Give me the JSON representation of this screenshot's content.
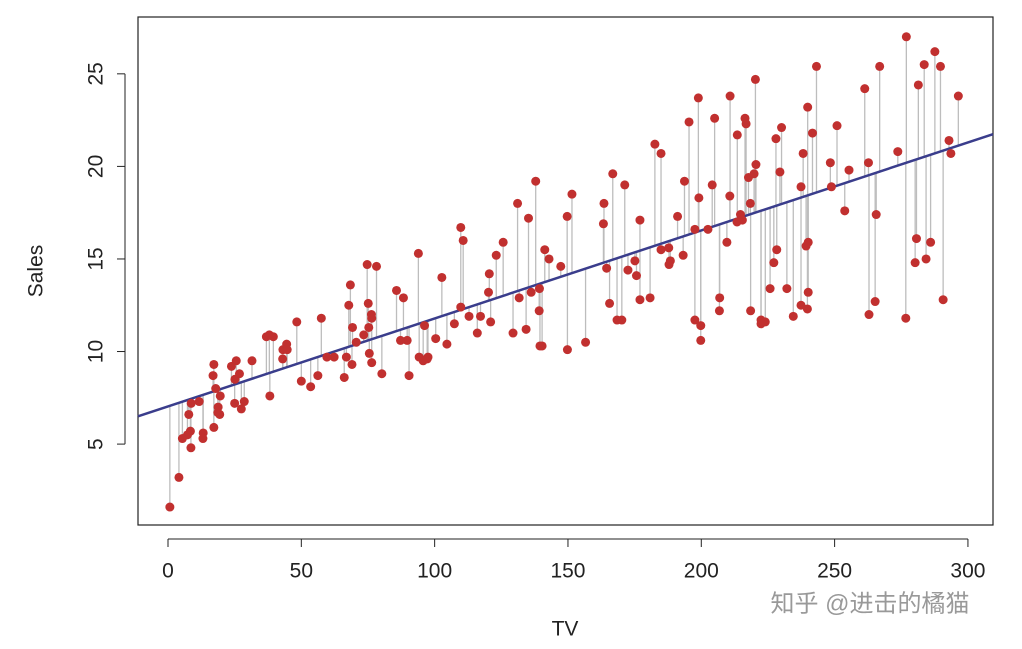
{
  "chart_data": {
    "type": "scatter",
    "x_label": "TV",
    "y_label": "Sales",
    "watermark": "知乎 @进击的橘猫",
    "x": [
      230.1,
      44.5,
      17.2,
      151.5,
      180.8,
      8.7,
      57.5,
      120.2,
      8.6,
      199.8,
      66.1,
      214.7,
      23.8,
      97.5,
      204.1,
      195.4,
      67.8,
      281.4,
      69.2,
      147.3,
      218.4,
      237.4,
      13.2,
      228.3,
      62.3,
      262.9,
      142.9,
      240.1,
      248.8,
      70.6,
      292.9,
      112.9,
      97.2,
      265.6,
      95.7,
      290.7,
      266.9,
      74.7,
      43.1,
      228,
      202.5,
      177,
      293.6,
      206.9,
      25.1,
      175.1,
      89.7,
      239.9,
      227.2,
      66.9,
      199.8,
      100.4,
      216.4,
      182.6,
      262.7,
      198.9,
      7.3,
      136.2,
      210.8,
      210.7,
      53.5,
      261.3,
      239.3,
      102.7,
      131.1,
      69,
      31.5,
      139.3,
      237.4,
      216.8,
      199.1,
      109.8,
      26.8,
      129.4,
      213.4,
      16.9,
      27.5,
      120.5,
      5.4,
      116,
      76.4,
      239.8,
      75.3,
      68.4,
      213.5,
      193.2,
      76.3,
      110.7,
      88.3,
      109.8,
      134.3,
      28.6,
      217.7,
      250.9,
      107.4,
      163.3,
      197.6,
      184.9,
      289.7,
      135.2,
      222.4,
      296.4,
      280.2,
      187.9,
      238.2,
      137.9,
      25,
      90.4,
      13.1,
      255.4,
      225.8,
      241.7,
      175.7,
      209.6,
      78.2,
      75.1,
      139.2,
      76.4,
      125.7,
      19.4,
      141.3,
      18.8,
      224,
      123.1,
      229.5,
      87.2,
      7.8,
      80.2,
      220.3,
      59.6,
      0.7,
      265.2,
      8.4,
      219.8,
      36.9,
      48.3,
      25.6,
      273.7,
      43,
      184.9,
      73.4,
      193.7,
      220.5,
      104.6,
      96.2,
      140.3,
      240.1,
      243.2,
      38,
      44.7,
      280.7,
      121,
      197.6,
      171.3,
      187.8,
      4.1,
      93.9,
      149.8,
      11.7,
      131.7,
      172.5,
      85.7,
      188.4,
      163.5,
      117.2,
      234.5,
      17.9,
      206.8,
      215.4,
      284.3,
      50,
      164.5,
      19.6,
      168.4,
      222.4,
      276.9,
      248.4,
      170.2,
      276.7,
      165.6,
      156.6,
      218.5,
      56.2,
      287.6,
      253.8,
      205,
      139.5,
      191.1,
      286,
      18.7,
      39.5,
      75.5,
      17.2,
      166.8,
      149.7,
      38.2,
      94.2,
      177,
      283.6,
      232.1
    ],
    "values": [
      22.1,
      10.4,
      9.3,
      18.5,
      12.9,
      7.2,
      11.8,
      13.2,
      4.8,
      10.6,
      8.6,
      17.4,
      9.2,
      9.7,
      19,
      22.4,
      12.5,
      24.4,
      11.3,
      14.6,
      18,
      12.5,
      5.6,
      15.5,
      9.7,
      12,
      15,
      15.9,
      18.9,
      10.5,
      21.4,
      11.9,
      9.6,
      17.4,
      9.5,
      12.8,
      25.4,
      14.7,
      10.1,
      21.5,
      16.6,
      17.1,
      20.7,
      12.9,
      8.5,
      14.9,
      10.6,
      23.2,
      14.8,
      9.7,
      11.4,
      10.7,
      22.6,
      21.2,
      20.2,
      23.7,
      5.5,
      13.2,
      23.8,
      18.4,
      8.1,
      24.2,
      15.7,
      14,
      18,
      9.3,
      9.5,
      13.4,
      18.9,
      22.3,
      18.3,
      12.4,
      8.8,
      11,
      17,
      8.7,
      6.9,
      14.2,
      5.3,
      11,
      11.8,
      12.3,
      11.3,
      13.6,
      21.7,
      15.2,
      12,
      16,
      12.9,
      16.7,
      11.2,
      7.3,
      19.4,
      22.2,
      11.5,
      16.9,
      11.7,
      15.5,
      25.4,
      17.2,
      11.7,
      23.8,
      14.8,
      14.7,
      20.7,
      19.2,
      7.2,
      8.7,
      5.3,
      19.8,
      13.4,
      21.8,
      14.1,
      15.9,
      14.6,
      12.6,
      12.2,
      9.4,
      15.9,
      6.6,
      15.5,
      7,
      11.6,
      15.2,
      19.7,
      10.6,
      6.6,
      8.8,
      24.7,
      9.7,
      1.6,
      12.7,
      5.7,
      19.6,
      10.8,
      11.6,
      9.5,
      20.8,
      9.6,
      20.7,
      10.9,
      19.2,
      20.1,
      10.4,
      11.4,
      10.3,
      13.2,
      25.4,
      10.9,
      10.1,
      16.1,
      11.6,
      16.6,
      19,
      15.6,
      3.2,
      15.3,
      10.1,
      7.3,
      12.9,
      14.4,
      13.3,
      14.9,
      18,
      11.9,
      11.9,
      8,
      12.2,
      17.1,
      15,
      8.4,
      14.5,
      7.6,
      11.7,
      11.5,
      27,
      20.2,
      11.7,
      11.8,
      12.6,
      10.5,
      12.2,
      8.7,
      26.2,
      17.6,
      22.6,
      10.3,
      17.3,
      15.9,
      6.7,
      10.8,
      9.9,
      5.9,
      19.6,
      17.3,
      7.6,
      9.7,
      12.8,
      25.5,
      13.4
    ],
    "color": "#c1302f",
    "fit": {
      "intercept": 7.0326,
      "slope": 0.04754,
      "color": "#3a3d8c"
    },
    "residual_color": "#bdbdbd",
    "xlim": [
      -11.25,
      309.4
    ],
    "ylim": [
      0.63,
      28.07
    ],
    "xticks": [
      0,
      50,
      100,
      150,
      200,
      250,
      300
    ],
    "yticks": [
      5,
      10,
      15,
      20,
      25
    ]
  }
}
